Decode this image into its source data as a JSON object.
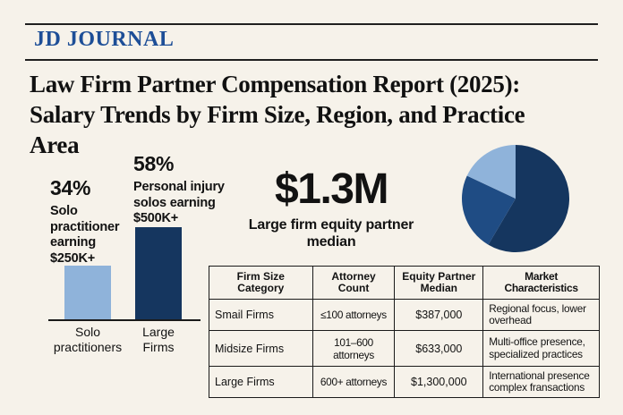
{
  "colors": {
    "background": "#f6f2ea",
    "brand_blue": "#1d4e97",
    "navy": "#15365f",
    "medium_blue": "#1f4c84",
    "light_blue": "#8fb3da",
    "text": "#121212",
    "rule": "#1f1f1f"
  },
  "masthead": {
    "title": "JD JOURNAL"
  },
  "headline": {
    "text": "Law Firm Partner Compensation Report (2025): Salary Trends by Firm Size, Region, and Practice Area",
    "lines": [
      "Law Firm Partner Compensation Report (2025):",
      "Salary Trends by Firm Size, Region, and Practice",
      "Area"
    ]
  },
  "big_stat": {
    "value": "$1.3M",
    "label": "Large firm equity partner median"
  },
  "chart_data": [
    {
      "type": "bar",
      "categories": [
        "Solo practitioners",
        "Large Firms"
      ],
      "values": [
        34,
        58
      ],
      "value_suffix": "%",
      "bar_colors": [
        "#8fb3da",
        "#15365f"
      ],
      "annotations": [
        {
          "pct": "34%",
          "caption": "Solo practitioner earning $250K+"
        },
        {
          "pct": "58%",
          "caption": "Personal injury solos earning $500K+"
        }
      ],
      "ylim": [
        0,
        65
      ],
      "grid": false,
      "axis_labels_shown": false
    },
    {
      "type": "pie",
      "slices": [
        {
          "value": 58.5,
          "color": "#15365f"
        },
        {
          "value": 23.5,
          "color": "#1f4c84"
        },
        {
          "value": 18.0,
          "color": "#8fb3da"
        }
      ],
      "start_angle_deg": 0,
      "direction": "clockwise",
      "labels_shown": false
    },
    {
      "type": "table",
      "headers": [
        "Firm Size Category",
        "Attorney Count",
        "Equity Partner Median",
        "Market Characteristics"
      ],
      "rows": [
        {
          "cells": [
            "Smail Firms",
            "≤100 attorneys",
            "$387,000",
            "Regional focus, lower overhead"
          ]
        },
        {
          "cells": [
            "Midsize Firms",
            "101–600 attorneys",
            "$633,000",
            "Multi-office presence, specialized practices"
          ]
        },
        {
          "cells": [
            "Large Firms",
            "600+ attorneys",
            "$1,300,000",
            "International presence complex fransactions"
          ]
        }
      ]
    }
  ]
}
